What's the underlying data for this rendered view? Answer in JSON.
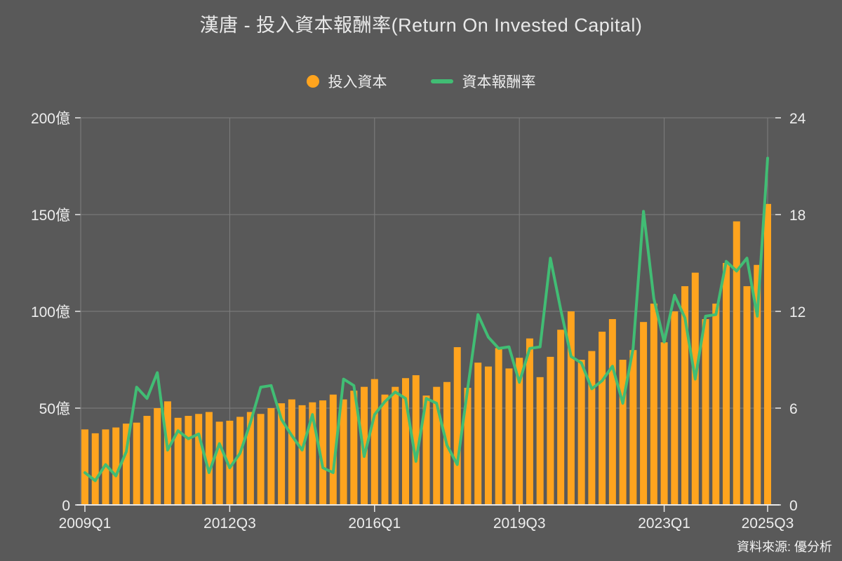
{
  "title": "漢唐 - 投入資本報酬率(Return On Invested Capital)",
  "legend": [
    {
      "label": "投入資本",
      "marker": "circle"
    },
    {
      "label": "資本報酬率",
      "marker": "line"
    }
  ],
  "source": "資料來源: 優分析",
  "colors": {
    "background": "#595959",
    "bar": "#FFA41E",
    "line": "#41BD74",
    "grid": "#7E7E7E",
    "axis": "#E8E8E8",
    "text": "#EDEDED"
  },
  "chart_data": {
    "type": "bar+line combo",
    "title": "漢唐 - 投入資本報酬率(Return On Invested Capital)",
    "grid": true,
    "legend_position": "top",
    "categories": [
      "2009Q1",
      "2009Q2",
      "2009Q3",
      "2009Q4",
      "2010Q1",
      "2010Q2",
      "2010Q3",
      "2010Q4",
      "2011Q1",
      "2011Q2",
      "2011Q3",
      "2011Q4",
      "2012Q1",
      "2012Q2",
      "2012Q3",
      "2012Q4",
      "2013Q1",
      "2013Q2",
      "2013Q3",
      "2013Q4",
      "2014Q1",
      "2014Q2",
      "2014Q3",
      "2014Q4",
      "2015Q1",
      "2015Q2",
      "2015Q3",
      "2015Q4",
      "2016Q1",
      "2016Q2",
      "2016Q3",
      "2016Q4",
      "2017Q1",
      "2017Q2",
      "2017Q3",
      "2017Q4",
      "2018Q1",
      "2018Q2",
      "2018Q3",
      "2018Q4",
      "2019Q1",
      "2019Q2",
      "2019Q3",
      "2019Q4",
      "2020Q1",
      "2020Q2",
      "2020Q3",
      "2020Q4",
      "2021Q1",
      "2021Q2",
      "2021Q3",
      "2021Q4",
      "2022Q1",
      "2022Q2",
      "2022Q3",
      "2022Q4",
      "2023Q1",
      "2023Q2",
      "2023Q3",
      "2023Q4",
      "2024Q1",
      "2024Q2",
      "2024Q3",
      "2024Q4",
      "2025Q1",
      "2025Q2",
      "2025Q3"
    ],
    "series": [
      {
        "name": "投入資本",
        "type": "bar",
        "axis": "left",
        "unit": "億",
        "values": [
          39,
          37,
          39,
          40,
          42,
          42.5,
          46,
          50,
          53.5,
          45,
          46,
          47,
          48,
          43,
          43.5,
          45.5,
          48,
          47,
          50,
          52.5,
          54.5,
          51.5,
          53,
          54,
          57,
          54.5,
          59,
          61,
          65,
          57,
          61,
          65.5,
          67,
          56.5,
          61,
          63.5,
          81.5,
          60.5,
          73.5,
          71.5,
          81,
          70.5,
          76,
          86,
          66,
          76.5,
          90.5,
          100,
          75,
          79.5,
          89.5,
          96,
          75,
          80,
          94.5,
          104,
          84,
          100,
          113,
          120,
          96,
          104,
          125,
          146.5,
          113,
          124,
          155.5
        ]
      },
      {
        "name": "資本報酬率",
        "type": "line",
        "axis": "right",
        "unit": "%",
        "values": [
          2.0,
          1.5,
          2.5,
          1.8,
          3.3,
          7.3,
          6.6,
          8.2,
          3.4,
          4.6,
          4.1,
          4.4,
          2.0,
          3.8,
          2.3,
          3.2,
          5.1,
          7.3,
          7.4,
          5.3,
          4.3,
          3.4,
          5.6,
          2.3,
          2.0,
          7.8,
          7.4,
          3.0,
          5.6,
          6.4,
          7.0,
          6.6,
          2.7,
          6.6,
          6.3,
          3.7,
          2.5,
          7.2,
          11.8,
          10.4,
          9.7,
          9.8,
          7.6,
          9.7,
          9.8,
          15.3,
          12.1,
          9.2,
          8.8,
          7.2,
          7.7,
          8.6,
          6.3,
          9.7,
          18.2,
          12.8,
          10.1,
          13.0,
          11.6,
          7.8,
          11.7,
          11.8,
          15.1,
          14.5,
          15.3,
          11.7,
          21.5
        ]
      }
    ],
    "left_axis": {
      "min": 0,
      "max": 200,
      "ticks": [
        "0",
        "50億",
        "100億",
        "150億",
        "200億"
      ]
    },
    "right_axis": {
      "min": 0,
      "max": 24,
      "ticks": [
        "0",
        "6",
        "12",
        "18",
        "24"
      ]
    },
    "x_axis": {
      "labeled_ticks": [
        {
          "label": "2009Q1",
          "index": 0
        },
        {
          "label": "2012Q3",
          "index": 14
        },
        {
          "label": "2016Q1",
          "index": 28
        },
        {
          "label": "2019Q3",
          "index": 42
        },
        {
          "label": "2023Q1",
          "index": 56
        },
        {
          "label": "2025Q3",
          "index": 66
        }
      ]
    }
  }
}
